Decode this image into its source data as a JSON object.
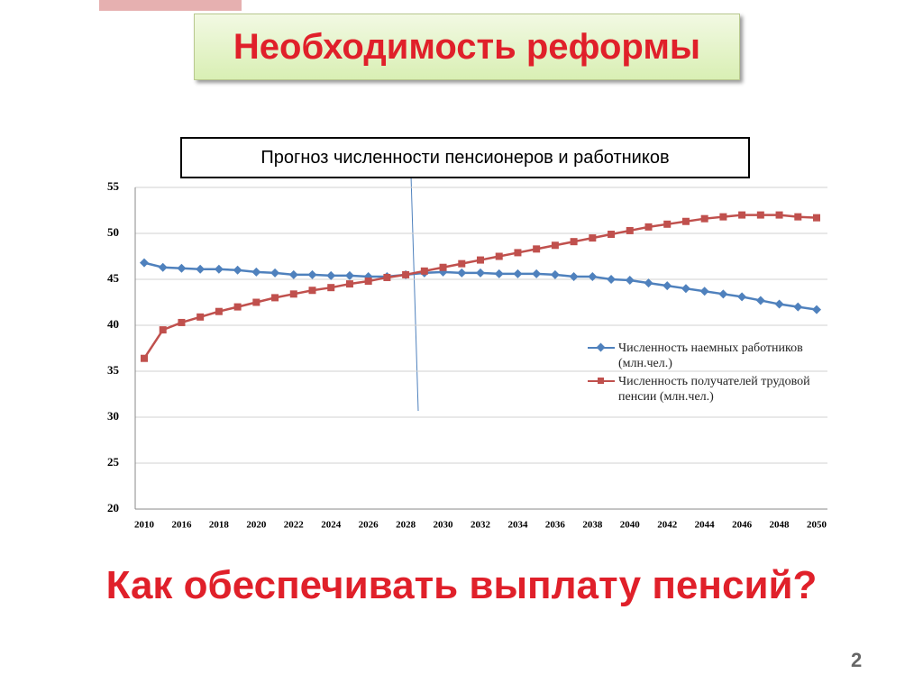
{
  "slide": {
    "title": "Необходимость реформы",
    "question": "Как обеспечивать выплату пенсий?",
    "page_number": "2"
  },
  "chart_data": {
    "type": "line",
    "title": "Прогноз численности пенсионеров и работников",
    "categories": [
      "2010",
      null,
      "2016",
      null,
      "2018",
      null,
      "2020",
      null,
      "2022",
      null,
      "2024",
      null,
      "2026",
      null,
      "2028",
      null,
      "2030",
      null,
      "2032",
      null,
      "2034",
      null,
      "2036",
      null,
      "2038",
      null,
      "2040",
      null,
      "2042",
      null,
      "2044",
      null,
      "2046",
      null,
      "2048",
      null,
      "2050"
    ],
    "series": [
      {
        "name": "Численность наемных работников (млн.чел.)",
        "color": "#4f81bd",
        "marker": "diamond",
        "values": [
          46.8,
          46.3,
          46.2,
          46.1,
          46.1,
          46.0,
          45.8,
          45.7,
          45.5,
          45.5,
          45.4,
          45.4,
          45.3,
          45.3,
          45.5,
          45.7,
          45.8,
          45.7,
          45.7,
          45.6,
          45.6,
          45.6,
          45.5,
          45.3,
          45.3,
          45.0,
          44.9,
          44.6,
          44.3,
          44.0,
          43.7,
          43.4,
          43.1,
          42.7,
          42.3,
          42.0,
          41.7
        ]
      },
      {
        "name": "Численность получателей трудовой пенсии (млн.чел.)",
        "color": "#c0504d",
        "marker": "square",
        "values": [
          36.4,
          39.5,
          40.3,
          40.9,
          41.5,
          42.0,
          42.5,
          43.0,
          43.4,
          43.8,
          44.1,
          44.5,
          44.8,
          45.2,
          45.5,
          45.9,
          46.3,
          46.7,
          47.1,
          47.5,
          47.9,
          48.3,
          48.7,
          49.1,
          49.5,
          49.9,
          50.3,
          50.7,
          51.0,
          51.3,
          51.6,
          51.8,
          52.0,
          52.0,
          52.0,
          51.8,
          51.7
        ]
      }
    ],
    "ylim": [
      20,
      55
    ],
    "yticks": [
      20,
      25,
      30,
      35,
      40,
      45,
      50,
      55
    ],
    "grid": true,
    "legend": "right"
  }
}
